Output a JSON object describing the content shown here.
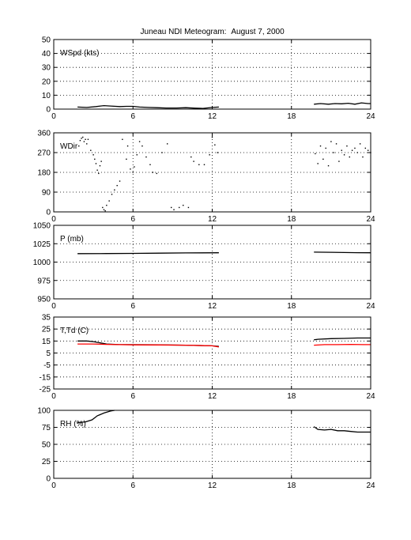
{
  "figure": {
    "title_left": "Juneau NDI Meteogram:",
    "title_right": "August  7, 2000"
  },
  "chart_data": [
    {
      "type": "line",
      "label": "WSpd (kts)",
      "xlim": [
        0,
        24
      ],
      "xticks": [
        "0",
        "6",
        "12",
        "18",
        "24"
      ],
      "ylim": [
        0,
        50
      ],
      "yticks": [
        "0",
        "10",
        "20",
        "30",
        "40",
        "50"
      ],
      "grid": true,
      "series": [
        {
          "color": "#000000",
          "segments": [
            {
              "x": [
                1.8,
                2.5,
                3.2,
                3.8,
                4.3,
                5.0,
                5.5,
                6.0,
                6.5,
                7.2,
                7.8,
                8.5,
                9.3,
                10.0,
                10.7,
                11.3,
                12.0,
                12.5
              ],
              "y": [
                1.5,
                1.2,
                1.8,
                2.5,
                2.2,
                1.8,
                2.0,
                2.0,
                1.5,
                1.2,
                1.0,
                0.8,
                0.8,
                1.0,
                0.7,
                0.5,
                1.2,
                1.5
              ]
            },
            {
              "x": [
                19.7,
                20.2,
                20.8,
                21.3,
                21.8,
                22.3,
                22.8,
                23.3,
                23.8,
                24.0
              ],
              "y": [
                3.5,
                4.0,
                3.5,
                4.0,
                3.8,
                4.2,
                3.5,
                4.5,
                4.0,
                4.0
              ]
            }
          ]
        }
      ]
    },
    {
      "type": "scatter",
      "label": "WDir",
      "xlim": [
        0,
        24
      ],
      "xticks": [
        "0",
        "6",
        "12",
        "18",
        "24"
      ],
      "ylim": [
        0,
        360
      ],
      "yticks": [
        "0",
        "90",
        "180",
        "270",
        "360"
      ],
      "grid": true,
      "series": [
        {
          "color": "#000000",
          "x": [
            1.9,
            2.0,
            2.1,
            2.2,
            2.3,
            2.4,
            2.5,
            2.6,
            2.8,
            3.0,
            3.1,
            3.2,
            3.3,
            3.4,
            3.5,
            3.6,
            3.7,
            3.8,
            3.9,
            4.0,
            4.2,
            4.4,
            4.6,
            4.8,
            5.0,
            5.2,
            5.5,
            5.6,
            5.8,
            6.0,
            6.1,
            6.3,
            6.5,
            6.7,
            7.0,
            7.3,
            7.5,
            7.8,
            8.2,
            8.6,
            8.9,
            9.1,
            9.5,
            9.8,
            10.2,
            10.4,
            10.6,
            11.0,
            11.4,
            11.8,
            12.0,
            12.2,
            12.4,
            19.8,
            20.0,
            20.2,
            20.4,
            20.6,
            20.8,
            21.0,
            21.2,
            21.4,
            21.6,
            21.8,
            22.0,
            22.2,
            22.4,
            22.6,
            22.8,
            23.0,
            23.2,
            23.4,
            23.6,
            23.8,
            24.0
          ],
          "y": [
            300,
            325,
            335,
            340,
            320,
            330,
            310,
            330,
            280,
            260,
            240,
            220,
            190,
            175,
            210,
            230,
            20,
            10,
            5,
            30,
            50,
            80,
            100,
            120,
            140,
            330,
            240,
            300,
            195,
            180,
            205,
            260,
            320,
            300,
            250,
            215,
            180,
            175,
            270,
            310,
            20,
            10,
            20,
            30,
            20,
            250,
            230,
            215,
            215,
            260,
            340,
            305,
            270,
            265,
            220,
            300,
            240,
            290,
            210,
            320,
            270,
            310,
            230,
            280,
            260,
            300,
            250,
            280,
            290,
            270,
            310,
            250,
            290,
            280,
            270
          ]
        }
      ]
    },
    {
      "type": "line",
      "label": "P (mb)",
      "xlim": [
        0,
        24
      ],
      "xticks": [
        "0",
        "6",
        "12",
        "18",
        "24"
      ],
      "ylim": [
        950,
        1050
      ],
      "yticks": [
        "950",
        "975",
        "1000",
        "1025",
        "1050"
      ],
      "grid": true,
      "series": [
        {
          "color": "#000000",
          "segments": [
            {
              "x": [
                1.8,
                4.0,
                6.0,
                8.0,
                10.0,
                12.5
              ],
              "y": [
                1011.5,
                1011.6,
                1011.8,
                1012.2,
                1012.5,
                1012.7
              ]
            },
            {
              "x": [
                19.7,
                21.0,
                22.0,
                23.0,
                24.0
              ],
              "y": [
                1013.5,
                1013.3,
                1013.0,
                1012.8,
                1012.7
              ]
            }
          ]
        }
      ]
    },
    {
      "type": "line",
      "label": "T,Td (C)",
      "xlim": [
        0,
        24
      ],
      "xticks": [
        "0",
        "6",
        "12",
        "18",
        "24"
      ],
      "ylim": [
        -25,
        35
      ],
      "yticks": [
        "-25",
        "-15",
        "-5",
        "5",
        "15",
        "25",
        "35"
      ],
      "grid": true,
      "series": [
        {
          "color": "#000000",
          "segments": [
            {
              "x": [
                1.8,
                2.5,
                3.0,
                3.5,
                4.0,
                5.0,
                6.0,
                8.0,
                10.0,
                12.0,
                12.5
              ],
              "y": [
                15.0,
                15.0,
                14.5,
                13.5,
                12.5,
                12.0,
                12.0,
                11.8,
                11.5,
                11.0,
                10.5
              ]
            },
            {
              "x": [
                19.7,
                20.0,
                21.0,
                22.0,
                23.0,
                24.0
              ],
              "y": [
                16.0,
                16.5,
                17.0,
                17.2,
                17.5,
                17.5
              ]
            }
          ]
        },
        {
          "color": "#ff0000",
          "segments": [
            {
              "x": [
                1.8,
                3.0,
                4.0,
                5.0,
                6.0,
                8.0,
                10.0,
                12.0,
                12.5
              ],
              "y": [
                12.5,
                12.5,
                12.2,
                12.0,
                11.8,
                11.7,
                11.5,
                11.0,
                10.0
              ]
            },
            {
              "x": [
                19.7,
                20.5,
                21.5,
                22.5,
                23.5,
                24.0
              ],
              "y": [
                11.5,
                12.0,
                12.0,
                12.2,
                12.0,
                12.0
              ]
            }
          ]
        }
      ]
    },
    {
      "type": "line",
      "label": "RH (%)",
      "xlim": [
        0,
        24
      ],
      "xticks": [
        "0",
        "6",
        "12",
        "18",
        "24"
      ],
      "ylim": [
        0,
        100
      ],
      "yticks": [
        "0",
        "25",
        "50",
        "75",
        "100"
      ],
      "grid": true,
      "series": [
        {
          "color": "#000000",
          "segments": [
            {
              "x": [
                1.8,
                2.4,
                2.9,
                3.3,
                3.8,
                4.3,
                4.6
              ],
              "y": [
                82,
                83,
                86,
                92,
                96,
                99,
                100
              ]
            },
            {
              "x": [
                19.7,
                20.0,
                20.5,
                21.0,
                21.5,
                22.0,
                22.5,
                23.0,
                23.5,
                24.0
              ],
              "y": [
                76,
                72,
                71,
                72,
                70,
                70,
                69,
                68,
                68,
                68
              ]
            }
          ]
        }
      ]
    }
  ]
}
